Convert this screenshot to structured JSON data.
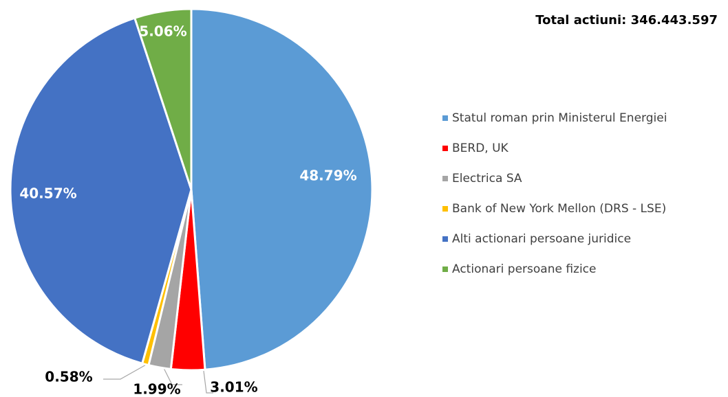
{
  "chart_data": {
    "type": "pie",
    "title": "Total actiuni: 346.443.597",
    "categories": [
      "Statul roman prin Ministerul Energiei",
      "BERD, UK",
      "Electrica SA",
      "Bank of New York Mellon (DRS - LSE)",
      "Alti actionari persoane juridice",
      "Actionari persoane fizice"
    ],
    "values": [
      48.79,
      3.01,
      1.99,
      0.58,
      40.57,
      5.06
    ],
    "value_labels": [
      "48.79%",
      "3.01%",
      "1.99%",
      "0.58%",
      "40.57%",
      "5.06%"
    ],
    "colors": [
      "#5b9bd5",
      "#ff0000",
      "#a5a5a5",
      "#ffc000",
      "#4472c4",
      "#70ad47"
    ],
    "legend": "right"
  }
}
